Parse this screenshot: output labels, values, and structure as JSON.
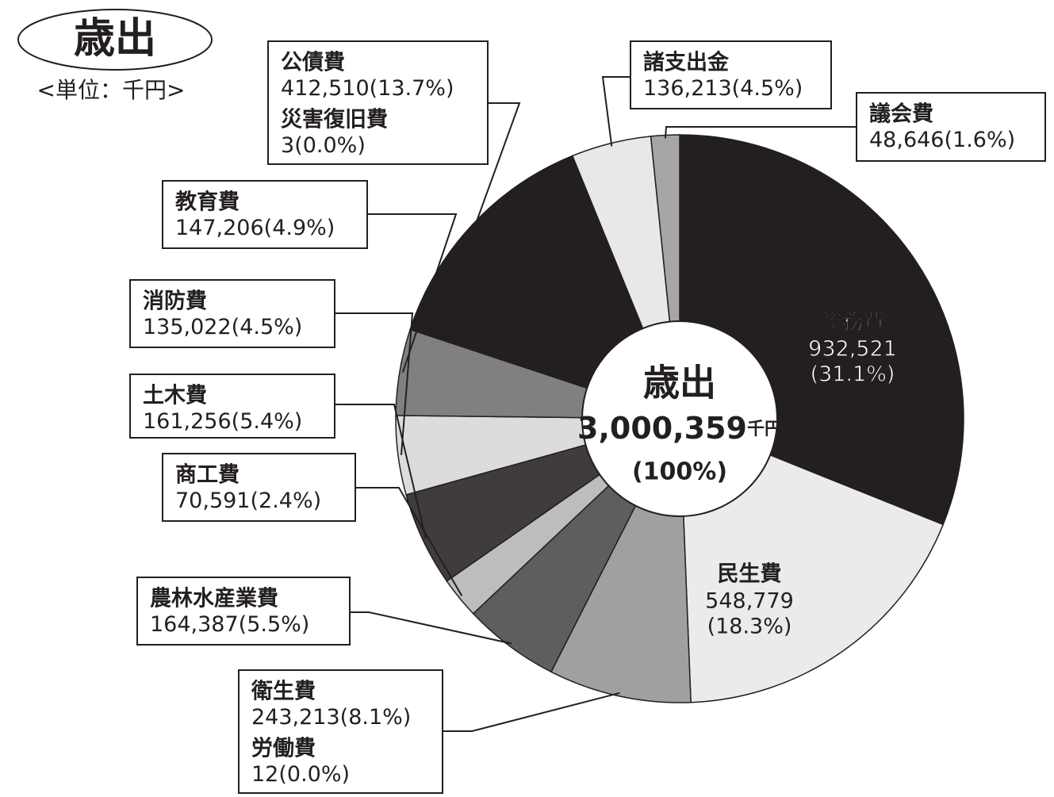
{
  "chart_data": {
    "type": "donut",
    "title": "歳出",
    "unit_label": "<単位：千円>",
    "center": {
      "title": "歳出",
      "value": 3000359,
      "value_label": "3,000,359",
      "unit": "千円",
      "percent": 100,
      "percent_label": "(100%)"
    },
    "categories": [
      "総務費",
      "民生費",
      "衛生費",
      "労働費",
      "農林水産業費",
      "商工費",
      "土木費",
      "消防費",
      "教育費",
      "災害復旧費",
      "公債費",
      "諸支出金",
      "議会費"
    ],
    "values": [
      932521,
      548779,
      243213,
      12,
      164387,
      70591,
      161256,
      135022,
      147206,
      3,
      412510,
      136213,
      48646
    ],
    "value_labels": [
      "932,521",
      "548,779",
      "243,213",
      "12",
      "164,387",
      "70,591",
      "161,256",
      "135,022",
      "147,206",
      "3",
      "412,510",
      "136,213",
      "48,646"
    ],
    "percents": [
      31.1,
      18.3,
      8.1,
      0.0,
      5.5,
      2.4,
      5.4,
      4.5,
      4.9,
      0.0,
      13.7,
      4.5,
      1.6
    ],
    "percent_labels": [
      "(31.1%)",
      "(18.3%)",
      "(8.1%)",
      "(0.0%)",
      "(5.5%)",
      "(2.4%)",
      "(5.4%)",
      "(4.5%)",
      "(4.9%)",
      "(0.0%)",
      "(13.7%)",
      "(4.5%)",
      "(1.6%)"
    ],
    "colors": [
      "#231f20",
      "#ebebeb",
      "#a0a0a0",
      "#231f20",
      "#5f5d5e",
      "#bdbdbd",
      "#403c3d",
      "#dcdcdc",
      "#808080",
      "#231f20",
      "#231f20",
      "#e8e8e8",
      "#a6a6a6"
    ]
  }
}
